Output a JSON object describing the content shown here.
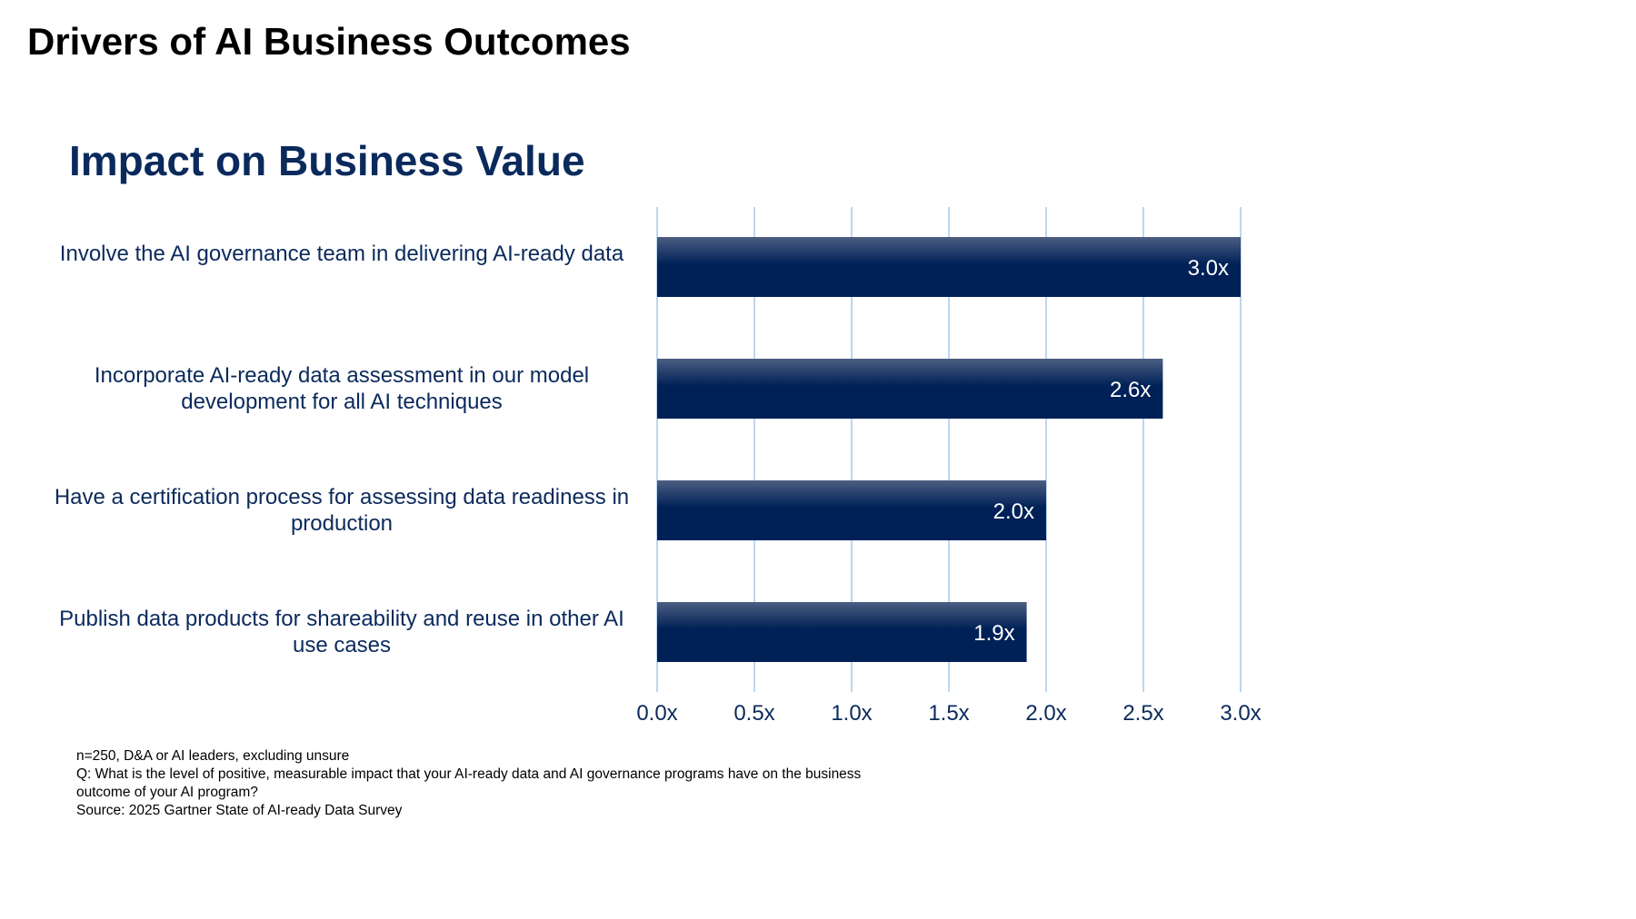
{
  "header": {
    "title": "Drivers of AI Business Outcomes"
  },
  "chart_data": {
    "type": "bar",
    "orientation": "horizontal",
    "title": "Impact on Business Value",
    "categories": [
      "Involve the AI governance team in delivering AI-ready data",
      "Incorporate AI-ready data assessment in our model development for all AI techniques",
      "Have a certification process for assessing data readiness in production",
      "Publish data products for shareability and reuse in other AI use cases"
    ],
    "values": [
      3.0,
      2.6,
      2.0,
      1.9
    ],
    "value_labels": [
      "3.0x",
      "2.6x",
      "2.0x",
      "1.9x"
    ],
    "x_ticks": [
      0,
      0.5,
      1.0,
      1.5,
      2.0,
      2.5,
      3.0
    ],
    "x_tick_labels": [
      "0.0x",
      "0.5x",
      "1.0x",
      "1.5x",
      "2.0x",
      "2.5x",
      "3.0x"
    ],
    "xlim": [
      0,
      3.0
    ],
    "xlabel": "",
    "ylabel": "",
    "grid": "vertical",
    "legend": "none",
    "bar_color": "#002157",
    "bar_highlight_color": "#4c5e82",
    "grid_color": "#bcd7f0",
    "label_color": "#0b2a5c"
  },
  "footnotes": {
    "sample": "n=250, D&A or AI leaders, excluding unsure",
    "question": "Q: What is the level of positive, measurable impact that your AI-ready data and AI governance programs have on the business outcome of your AI program?",
    "source": "Source: 2025 Gartner State of AI-ready Data Survey"
  }
}
